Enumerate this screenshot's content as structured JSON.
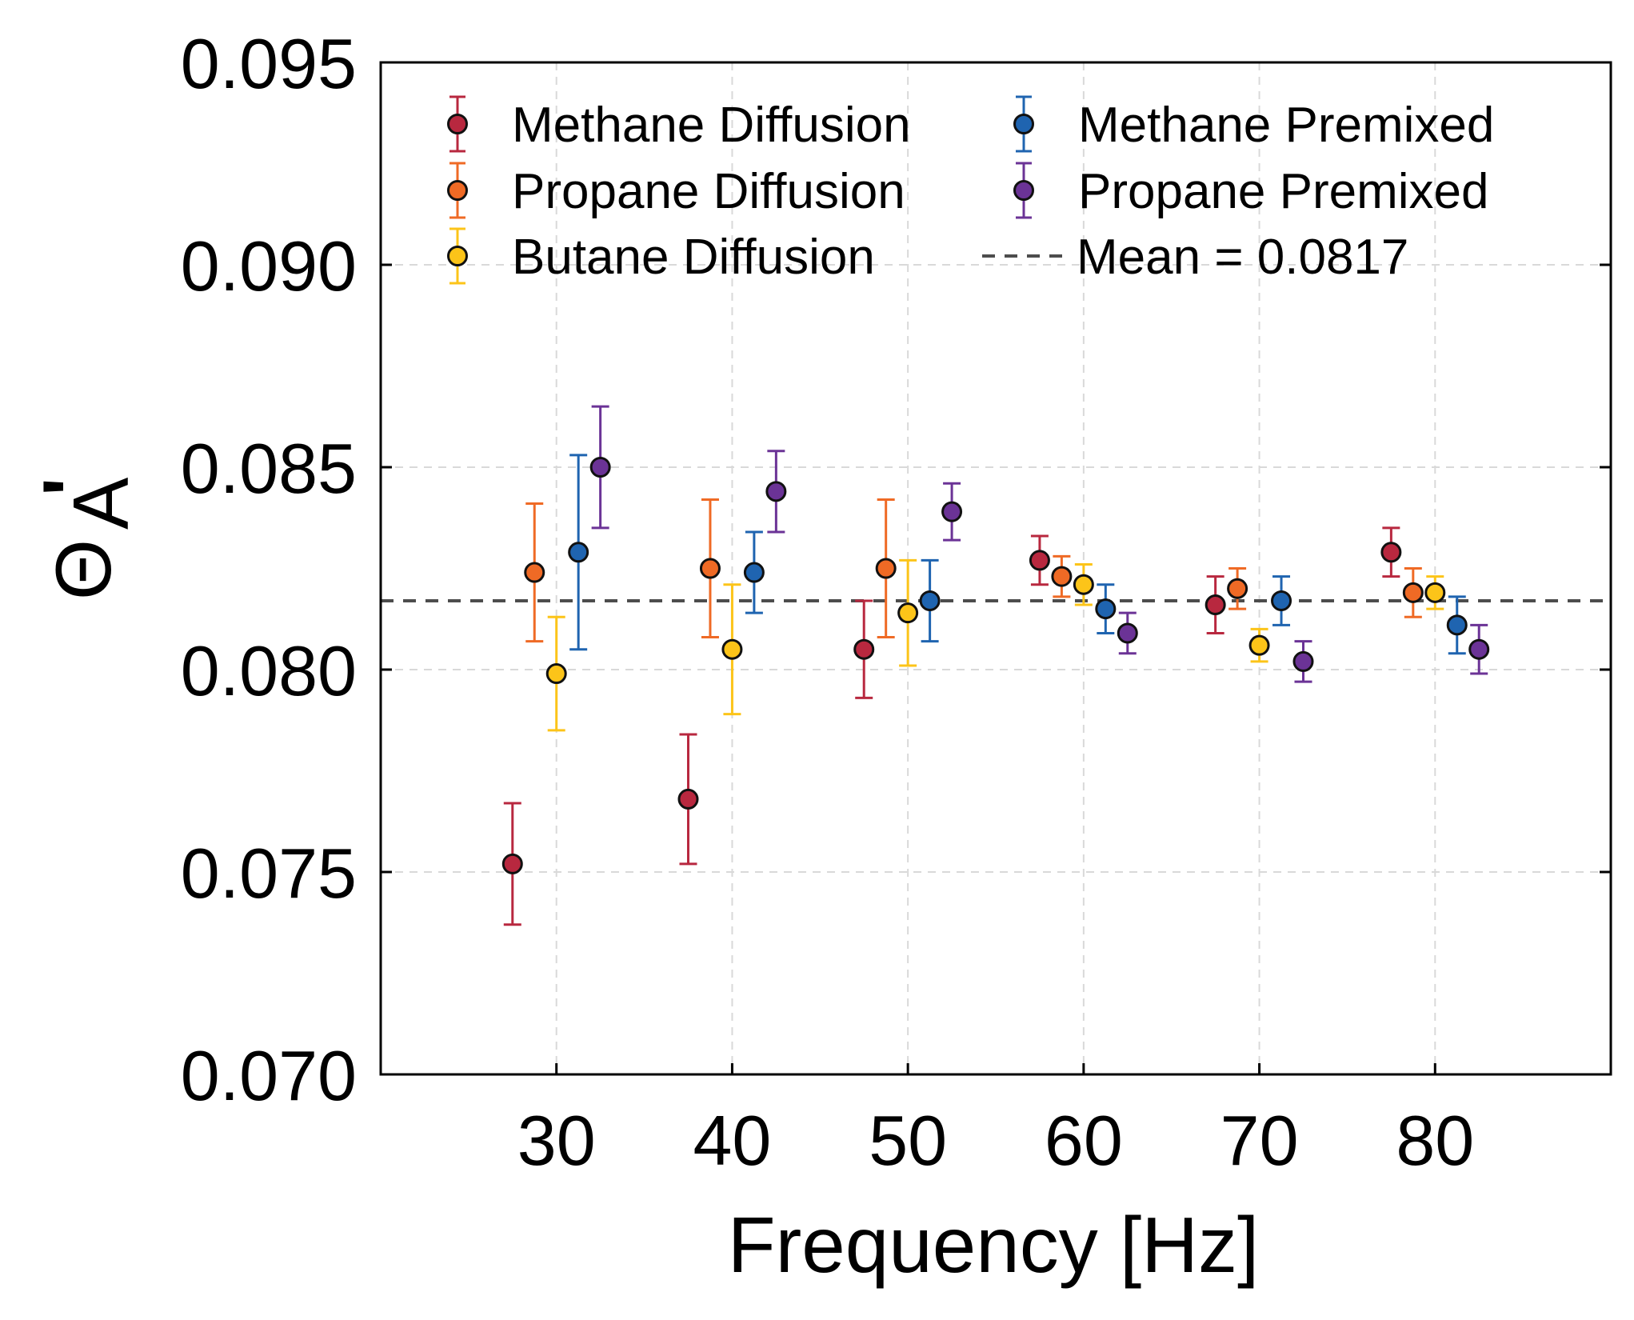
{
  "chart_data": {
    "type": "scatter",
    "xlabel": "Frequency [Hz]",
    "ylabel": "Θ",
    "ylabel_sub": "A",
    "ylabel_prime": "'",
    "xlim": [
      20,
      90
    ],
    "ylim": [
      0.07,
      0.095
    ],
    "xticks": [
      30,
      40,
      50,
      60,
      70,
      80
    ],
    "yticks": [
      0.07,
      0.075,
      0.08,
      0.085,
      0.09,
      0.095
    ],
    "xtick_labels": [
      "30",
      "40",
      "50",
      "60",
      "70",
      "80"
    ],
    "ytick_labels": [
      "0.070",
      "0.075",
      "0.080",
      "0.085",
      "0.090",
      "0.095"
    ],
    "grid": true,
    "legend_position": "top",
    "mean": {
      "label": "Mean = 0.0817",
      "value": 0.0817,
      "color": "#4d4d4d"
    },
    "series": [
      {
        "name": "Methane Diffusion",
        "color": "#b8283f",
        "x": [
          27.5,
          37.5,
          47.5,
          57.5,
          67.5,
          77.5
        ],
        "y": [
          0.0752,
          0.0768,
          0.0805,
          0.0827,
          0.0816,
          0.0829
        ],
        "err": [
          0.0015,
          0.0016,
          0.0012,
          0.0006,
          0.0007,
          0.0006
        ]
      },
      {
        "name": "Propane Diffusion",
        "color": "#ef6a25",
        "x": [
          28.75,
          38.75,
          48.75,
          58.75,
          68.75,
          78.75
        ],
        "y": [
          0.0824,
          0.0825,
          0.0825,
          0.0823,
          0.082,
          0.0819
        ],
        "err": [
          0.0017,
          0.0017,
          0.0017,
          0.0005,
          0.0005,
          0.0006
        ]
      },
      {
        "name": "Butane Diffusion",
        "color": "#fcc419",
        "x": [
          30,
          40,
          50,
          60,
          70,
          80
        ],
        "y": [
          0.0799,
          0.0805,
          0.0814,
          0.0821,
          0.0806,
          0.0819
        ],
        "err": [
          0.0014,
          0.0016,
          0.0013,
          0.0005,
          0.0004,
          0.0004
        ]
      },
      {
        "name": "Methane Premixed",
        "color": "#1f64b0",
        "x": [
          31.25,
          41.25,
          51.25,
          61.25,
          71.25,
          81.25
        ],
        "y": [
          0.0829,
          0.0824,
          0.0817,
          0.0815,
          0.0817,
          0.0811
        ],
        "err": [
          0.0024,
          0.001,
          0.001,
          0.0006,
          0.0006,
          0.0007
        ]
      },
      {
        "name": "Propane Premixed",
        "color": "#6b3396",
        "x": [
          32.5,
          42.5,
          52.5,
          62.5,
          72.5,
          82.5
        ],
        "y": [
          0.085,
          0.0844,
          0.0839,
          0.0809,
          0.0802,
          0.0805
        ],
        "err": [
          0.0015,
          0.001,
          0.0007,
          0.0005,
          0.0005,
          0.0006
        ]
      }
    ]
  }
}
